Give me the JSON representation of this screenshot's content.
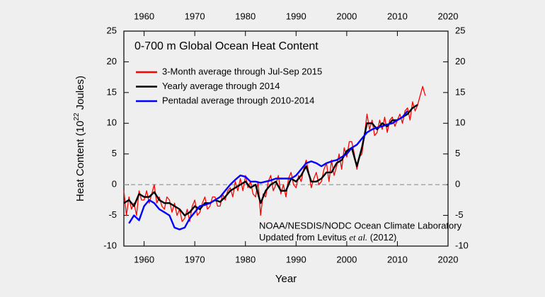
{
  "chart_data": {
    "type": "line",
    "title": "0-700 m Global Ocean Heat Content",
    "x_label": "Year",
    "y_label_parts": [
      "Heat Content (10",
      "22",
      " Joules)"
    ],
    "annotation": [
      "NOAA/NESDIS/NODC Ocean Climate Laboratory",
      [
        "Updated from Levitus ",
        "et al.",
        " (2012)"
      ]
    ],
    "xlim": [
      1956,
      2020
    ],
    "xticks": [
      1960,
      1970,
      1980,
      1990,
      2000,
      2010,
      2020
    ],
    "ylim": [
      -10,
      25
    ],
    "yticks": [
      -10,
      -5,
      0,
      5,
      10,
      15,
      20,
      25
    ],
    "zero_line": true,
    "series": [
      {
        "name": "3-Month average through Jul-Sep 2015",
        "color": "#ff0000",
        "x": [
          1956,
          1956.5,
          1957,
          1957.5,
          1958,
          1958.5,
          1959,
          1959.5,
          1960,
          1960.5,
          1961,
          1961.5,
          1962,
          1962.5,
          1963,
          1963.5,
          1964,
          1964.5,
          1965,
          1965.5,
          1966,
          1966.5,
          1967,
          1967.5,
          1968,
          1968.5,
          1969,
          1969.5,
          1970,
          1970.5,
          1971,
          1971.5,
          1972,
          1972.5,
          1973,
          1973.5,
          1974,
          1974.5,
          1975,
          1975.5,
          1976,
          1976.5,
          1977,
          1977.5,
          1978,
          1978.5,
          1979,
          1979.5,
          1980,
          1980.5,
          1981,
          1981.5,
          1982,
          1982.5,
          1983,
          1983.5,
          1984,
          1984.5,
          1985,
          1985.5,
          1986,
          1986.5,
          1987,
          1987.5,
          1988,
          1988.5,
          1989,
          1989.5,
          1990,
          1990.5,
          1991,
          1991.5,
          1992,
          1992.5,
          1993,
          1993.5,
          1994,
          1994.5,
          1995,
          1995.5,
          1996,
          1996.5,
          1997,
          1997.5,
          1998,
          1998.5,
          1999,
          1999.5,
          2000,
          2000.5,
          2001,
          2001.5,
          2002,
          2002.5,
          2003,
          2003.5,
          2004,
          2004.5,
          2005,
          2005.5,
          2006,
          2006.5,
          2007,
          2007.5,
          2008,
          2008.5,
          2009,
          2009.5,
          2010,
          2010.5,
          2011,
          2011.5,
          2012,
          2012.5,
          2013,
          2013.5,
          2014,
          2014.5,
          2015,
          2015.5
        ],
        "values": [
          -1,
          -5,
          -2,
          -4,
          -3,
          -5,
          -1,
          -2.5,
          -2.5,
          -1,
          -3,
          -1.5,
          0,
          -3,
          -2,
          -3.5,
          -4,
          -2,
          -2.5,
          -4.5,
          -3,
          -5,
          -4,
          -6,
          -5.5,
          -4,
          -6,
          -3.5,
          -2.5,
          -5,
          -4.5,
          -3,
          -2,
          -4,
          -3.5,
          -2,
          -2,
          -3.5,
          -3.5,
          -1.5,
          -2.5,
          -1,
          -0.5,
          -2,
          0.5,
          -1,
          1,
          -1,
          1.5,
          -0.5,
          0.5,
          -1.5,
          -2,
          0.5,
          -5,
          -1.5,
          -2,
          0.5,
          1.5,
          -1,
          0,
          1.5,
          -1.5,
          0,
          -2,
          1,
          2,
          0,
          -0.5,
          1.5,
          0.5,
          2.5,
          4,
          2,
          -0.5,
          1,
          2,
          0,
          0.5,
          2.5,
          3.5,
          0.5,
          4,
          1.5,
          3,
          5,
          2.5,
          6,
          4.5,
          7,
          7,
          5,
          2.5,
          4.5,
          5,
          8,
          11.5,
          9,
          10.5,
          8,
          8.5,
          10.5,
          9,
          11,
          8.5,
          10.5,
          11,
          9.5,
          10.5,
          11.5,
          10,
          12,
          12.5,
          10.5,
          13.5,
          12,
          13,
          14.5,
          16,
          14.5
        ]
      },
      {
        "name": "Yearly average through 2014",
        "color": "#000000",
        "x": [
          1956,
          1957,
          1958,
          1959,
          1960,
          1961,
          1962,
          1963,
          1964,
          1965,
          1966,
          1967,
          1968,
          1969,
          1970,
          1971,
          1972,
          1973,
          1974,
          1975,
          1976,
          1977,
          1978,
          1979,
          1980,
          1981,
          1982,
          1983,
          1984,
          1985,
          1986,
          1987,
          1988,
          1989,
          1990,
          1991,
          1992,
          1993,
          1994,
          1995,
          1996,
          1997,
          1998,
          1999,
          2000,
          2001,
          2002,
          2003,
          2004,
          2005,
          2006,
          2007,
          2008,
          2009,
          2010,
          2011,
          2012,
          2013,
          2014
        ],
        "values": [
          -3,
          -2.5,
          -3.5,
          -1.5,
          -2,
          -2,
          -1.2,
          -2.5,
          -3,
          -3,
          -3.5,
          -4,
          -5,
          -4.5,
          -3.5,
          -4,
          -3,
          -3,
          -2.5,
          -2.8,
          -2,
          -1,
          -0.5,
          0,
          0.5,
          -0.5,
          0,
          -3,
          -1,
          0,
          0.5,
          -1,
          -1,
          1,
          0.5,
          1.5,
          3,
          0.5,
          0.5,
          1,
          2,
          2,
          3.5,
          4,
          5.5,
          6,
          3,
          6,
          10,
          10,
          9,
          10,
          9.5,
          10.5,
          10.5,
          11,
          11.5,
          12.5,
          13
        ]
      },
      {
        "name": "Pentadal average through 2010-2014",
        "color": "#0000ff",
        "x": [
          1957,
          1958,
          1959,
          1960,
          1961,
          1962,
          1963,
          1964,
          1965,
          1966,
          1967,
          1968,
          1969,
          1970,
          1971,
          1972,
          1973,
          1974,
          1975,
          1976,
          1977,
          1978,
          1979,
          1980,
          1981,
          1982,
          1983,
          1984,
          1985,
          1986,
          1987,
          1988,
          1989,
          1990,
          1991,
          1992,
          1993,
          1994,
          1995,
          1996,
          1997,
          1998,
          1999,
          2000,
          2001,
          2002,
          2003,
          2004,
          2005,
          2006,
          2007,
          2008,
          2009,
          2010,
          2011,
          2012
        ],
        "values": [
          -6.3,
          -5,
          -5.8,
          -3.5,
          -2.5,
          -3,
          -4,
          -4.5,
          -5,
          -7,
          -7.3,
          -7,
          -5.5,
          -4.5,
          -3.5,
          -3.3,
          -3,
          -2.5,
          -2,
          -1,
          0,
          0.8,
          1.5,
          1.3,
          0.5,
          0.5,
          0.3,
          0.5,
          0.7,
          1,
          1,
          1,
          1,
          1.5,
          2.5,
          3.5,
          3.8,
          3.5,
          3,
          3.5,
          3.8,
          4,
          4.5,
          5,
          6,
          6.5,
          7.5,
          8.5,
          9,
          9.3,
          9.5,
          9.8,
          10,
          10.5,
          11,
          12
        ]
      }
    ]
  }
}
